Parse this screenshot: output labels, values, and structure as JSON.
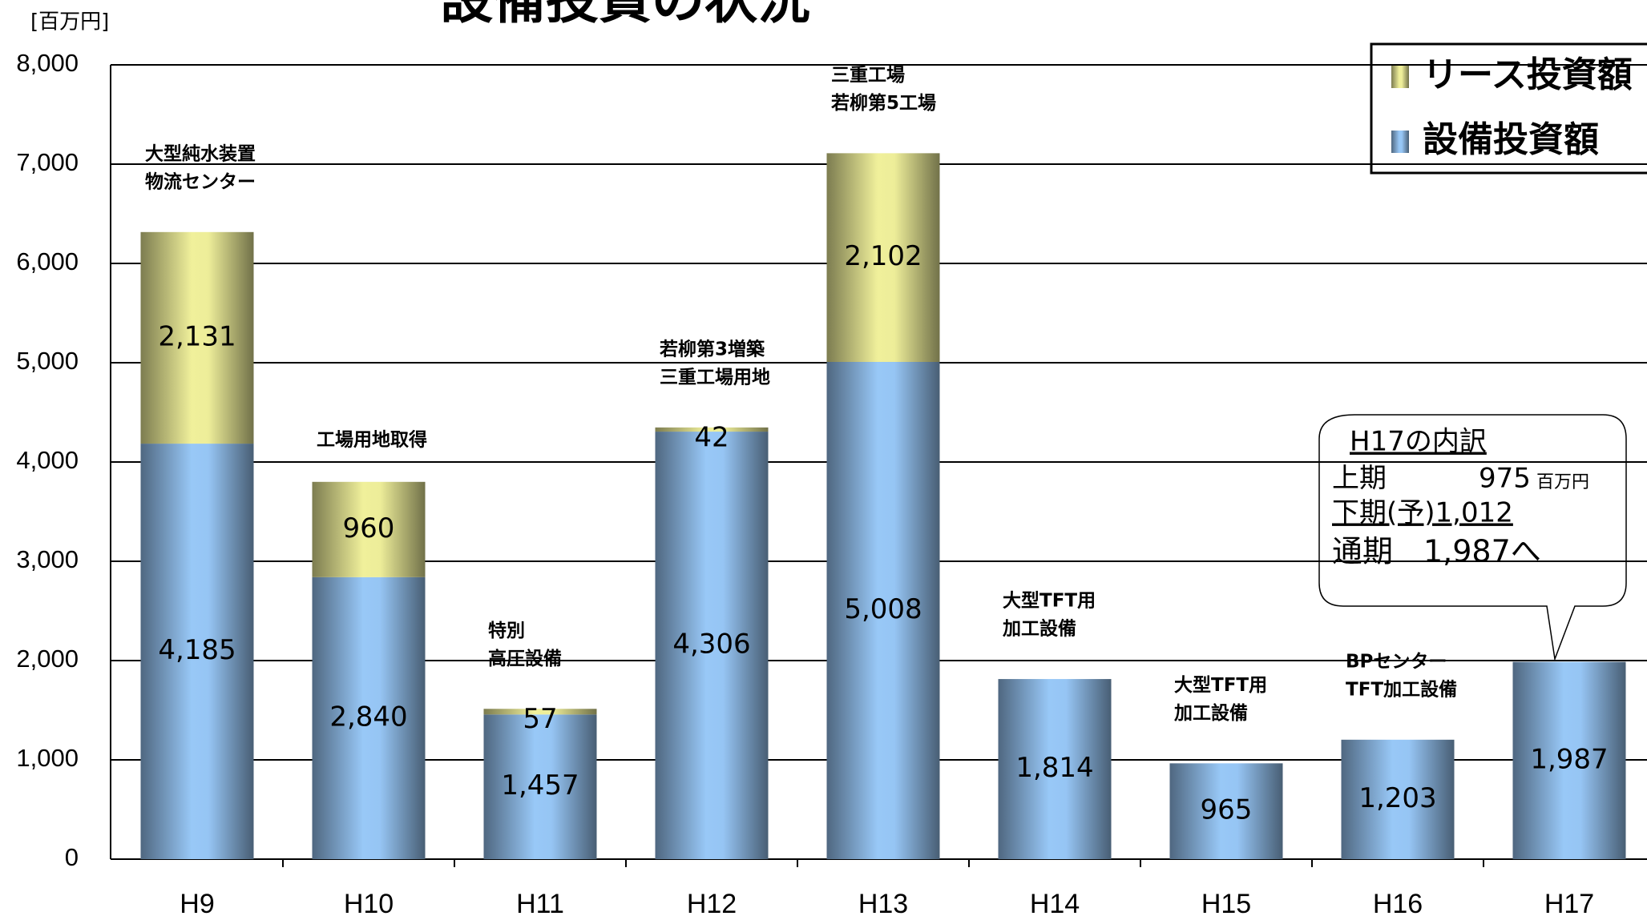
{
  "chart_data": {
    "type": "stacked_bar",
    "title": "設備投資の状況",
    "y_unit": "[百万円]",
    "categories": [
      "H9",
      "H10",
      "H11",
      "H12",
      "H13",
      "H14",
      "H15",
      "H16",
      "H17"
    ],
    "series": [
      {
        "name": "設備投資額",
        "color": "#8fbce8",
        "values": [
          4185,
          2840,
          1457,
          4306,
          5008,
          1814,
          965,
          1203,
          1987
        ],
        "value_labels": [
          "4,185",
          "2,840",
          "1,457",
          "4,306",
          "5,008",
          "1,814",
          "965",
          "1,203",
          "1,987"
        ]
      },
      {
        "name": "リース投資額",
        "color": "#e2e292",
        "values": [
          2131,
          960,
          57,
          42,
          2102,
          null,
          null,
          null,
          null
        ],
        "value_labels": [
          "2,131",
          "960",
          "57",
          "42",
          "2,102",
          null,
          null,
          null,
          null
        ]
      }
    ],
    "ylim": [
      0,
      8000
    ],
    "yticks": [
      0,
      {
        "value": 1000,
        "label": "1,000"
      },
      {
        "value": 2000,
        "label": "2,000"
      },
      {
        "value": 3000,
        "label": "3,000"
      },
      {
        "value": 4000,
        "label": "4,000"
      },
      {
        "value": 5000,
        "label": "5,000"
      },
      {
        "value": 6000,
        "label": "6,000"
      },
      {
        "value": 7000,
        "label": "7,000"
      },
      {
        "value": 8000,
        "label": "8,000"
      }
    ],
    "grid": true,
    "legend_position": "top-right",
    "bar_notes": [
      [
        "大型純水装置",
        "物流センター"
      ],
      [
        "工場用地取得"
      ],
      [
        "特別",
        "高圧設備"
      ],
      [
        "若柳第3増築",
        "三重工場用地"
      ],
      [
        "三重工場",
        "若柳第5工場"
      ],
      [
        "大型TFT用",
        "加工設備"
      ],
      [
        "大型TFT用",
        "加工設備"
      ],
      [
        "BPセンター",
        "TFT加工設備"
      ],
      null
    ],
    "callout": {
      "title": "H17の内訳",
      "first_half": "上期",
      "first_half_value": "975",
      "unit": "百万円",
      "second_half": "下期(予)1,012",
      "full_year": "通期　1,987へ"
    }
  }
}
